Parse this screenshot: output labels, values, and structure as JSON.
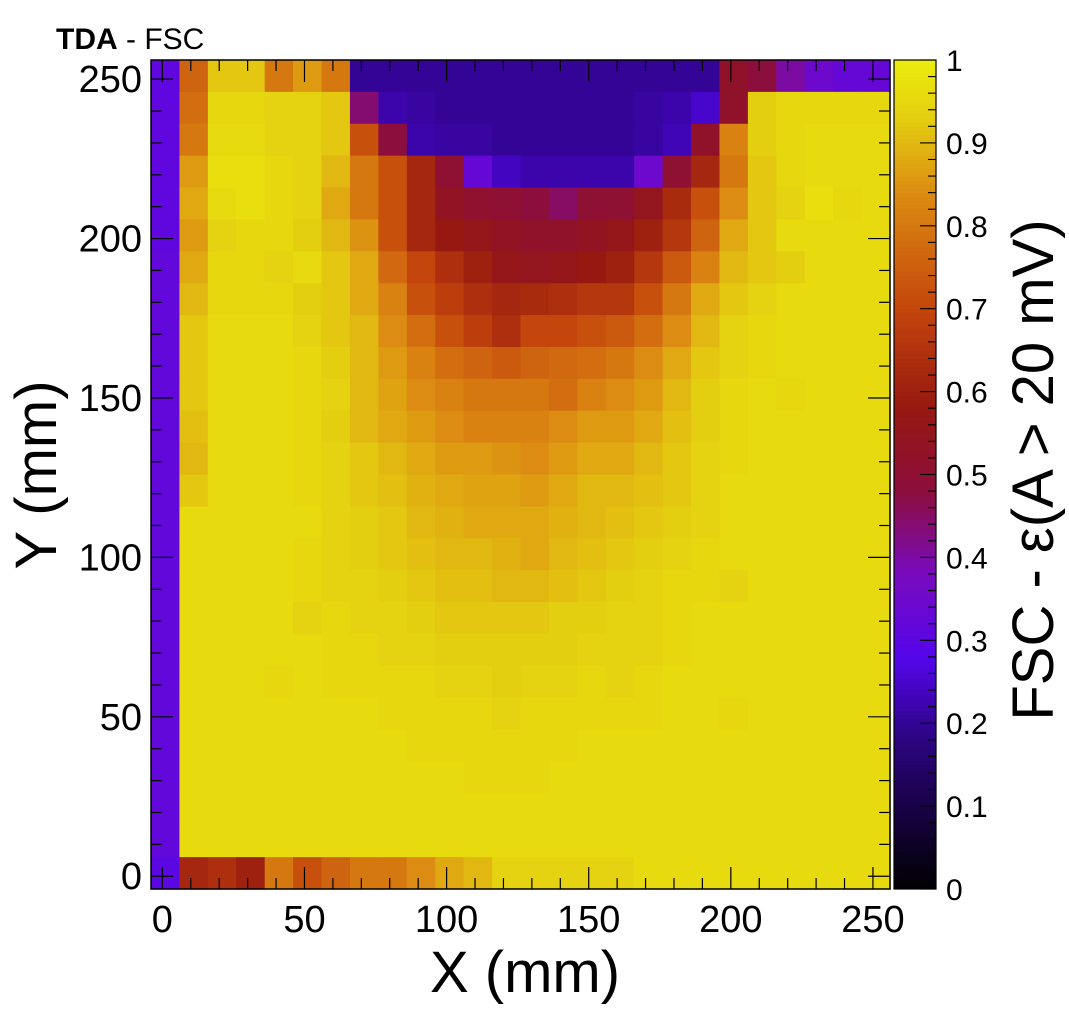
{
  "title": {
    "bold": "TDA",
    "rest": " - FSC"
  },
  "chart_data": {
    "type": "heatmap",
    "xlabel": "X (mm)",
    "ylabel": "Y (mm)",
    "zlabel": "FSC - ε(A > 20 mV)",
    "xlim": [
      -4,
      256
    ],
    "ylim": [
      -4,
      256
    ],
    "zlim": [
      0,
      1
    ],
    "x_ticks": [
      0,
      50,
      100,
      150,
      200,
      250
    ],
    "y_ticks": [
      0,
      50,
      100,
      150,
      200,
      250
    ],
    "z_ticks": [
      0,
      0.1,
      0.2,
      0.3,
      0.4,
      0.5,
      0.6,
      0.7,
      0.8,
      0.9,
      1
    ],
    "x_tick_labels": [
      "0",
      "50",
      "100",
      "150",
      "200",
      "250"
    ],
    "y_tick_labels": [
      "0",
      "50",
      "100",
      "150",
      "200",
      "250"
    ],
    "z_tick_labels": [
      "0",
      "0.1",
      "0.2",
      "0.3",
      "0.4",
      "0.5",
      "0.6",
      "0.7",
      "0.8",
      "0.9",
      "1"
    ],
    "bin_width": 10,
    "first_bin_x": -4,
    "first_bin_y": -4,
    "rows_top_to_bottom": [
      [
        0.31,
        0.76,
        0.92,
        0.92,
        0.8,
        0.86,
        0.8,
        0.2,
        0.2,
        0.2,
        0.2,
        0.2,
        0.2,
        0.2,
        0.2,
        0.2,
        0.2,
        0.2,
        0.2,
        0.2,
        0.52,
        0.48,
        0.4,
        0.35,
        0.33,
        0.33
      ],
      [
        0.31,
        0.78,
        0.95,
        0.95,
        0.94,
        0.94,
        0.92,
        0.44,
        0.22,
        0.21,
        0.2,
        0.2,
        0.2,
        0.2,
        0.2,
        0.2,
        0.2,
        0.21,
        0.22,
        0.25,
        0.52,
        0.93,
        0.95,
        0.95,
        0.95,
        0.95
      ],
      [
        0.31,
        0.8,
        0.96,
        0.96,
        0.94,
        0.94,
        0.92,
        0.72,
        0.48,
        0.22,
        0.21,
        0.21,
        0.2,
        0.2,
        0.2,
        0.2,
        0.2,
        0.21,
        0.23,
        0.52,
        0.82,
        0.93,
        0.95,
        0.96,
        0.96,
        0.96
      ],
      [
        0.31,
        0.86,
        0.97,
        0.97,
        0.95,
        0.94,
        0.9,
        0.8,
        0.72,
        0.62,
        0.5,
        0.33,
        0.24,
        0.22,
        0.22,
        0.22,
        0.22,
        0.35,
        0.5,
        0.62,
        0.8,
        0.92,
        0.95,
        0.96,
        0.96,
        0.96
      ],
      [
        0.31,
        0.88,
        0.96,
        0.97,
        0.95,
        0.94,
        0.88,
        0.8,
        0.72,
        0.62,
        0.54,
        0.51,
        0.5,
        0.48,
        0.45,
        0.5,
        0.5,
        0.55,
        0.63,
        0.72,
        0.84,
        0.92,
        0.94,
        0.97,
        0.95,
        0.96
      ],
      [
        0.31,
        0.86,
        0.94,
        0.95,
        0.95,
        0.93,
        0.9,
        0.85,
        0.72,
        0.62,
        0.58,
        0.56,
        0.54,
        0.52,
        0.52,
        0.54,
        0.56,
        0.6,
        0.66,
        0.76,
        0.88,
        0.92,
        0.96,
        0.96,
        0.96,
        0.96
      ],
      [
        0.32,
        0.88,
        0.95,
        0.95,
        0.94,
        0.96,
        0.92,
        0.88,
        0.77,
        0.7,
        0.64,
        0.6,
        0.56,
        0.55,
        0.56,
        0.58,
        0.6,
        0.66,
        0.74,
        0.82,
        0.9,
        0.92,
        0.93,
        0.96,
        0.96,
        0.96
      ],
      [
        0.32,
        0.9,
        0.95,
        0.95,
        0.95,
        0.93,
        0.92,
        0.88,
        0.82,
        0.72,
        0.68,
        0.64,
        0.62,
        0.63,
        0.64,
        0.66,
        0.66,
        0.72,
        0.8,
        0.88,
        0.92,
        0.94,
        0.96,
        0.96,
        0.96,
        0.96
      ],
      [
        0.32,
        0.92,
        0.96,
        0.96,
        0.96,
        0.94,
        0.92,
        0.9,
        0.84,
        0.78,
        0.72,
        0.68,
        0.64,
        0.7,
        0.7,
        0.72,
        0.74,
        0.78,
        0.84,
        0.9,
        0.94,
        0.95,
        0.96,
        0.96,
        0.96,
        0.96
      ],
      [
        0.32,
        0.92,
        0.96,
        0.96,
        0.96,
        0.95,
        0.93,
        0.9,
        0.86,
        0.82,
        0.78,
        0.76,
        0.74,
        0.76,
        0.77,
        0.78,
        0.8,
        0.84,
        0.88,
        0.92,
        0.94,
        0.95,
        0.96,
        0.96,
        0.96,
        0.96
      ],
      [
        0.32,
        0.92,
        0.96,
        0.96,
        0.96,
        0.95,
        0.94,
        0.9,
        0.87,
        0.84,
        0.82,
        0.8,
        0.8,
        0.8,
        0.78,
        0.82,
        0.84,
        0.86,
        0.9,
        0.93,
        0.95,
        0.96,
        0.95,
        0.96,
        0.96,
        0.96
      ],
      [
        0.32,
        0.91,
        0.96,
        0.96,
        0.96,
        0.95,
        0.93,
        0.9,
        0.88,
        0.86,
        0.84,
        0.82,
        0.82,
        0.82,
        0.84,
        0.86,
        0.86,
        0.88,
        0.91,
        0.93,
        0.95,
        0.96,
        0.96,
        0.96,
        0.96,
        0.96
      ],
      [
        0.32,
        0.9,
        0.96,
        0.96,
        0.96,
        0.95,
        0.94,
        0.92,
        0.9,
        0.88,
        0.86,
        0.86,
        0.85,
        0.84,
        0.86,
        0.88,
        0.88,
        0.9,
        0.92,
        0.94,
        0.95,
        0.96,
        0.96,
        0.96,
        0.96,
        0.96
      ],
      [
        0.32,
        0.92,
        0.96,
        0.96,
        0.96,
        0.95,
        0.94,
        0.92,
        0.91,
        0.89,
        0.88,
        0.87,
        0.87,
        0.86,
        0.88,
        0.9,
        0.9,
        0.91,
        0.92,
        0.94,
        0.96,
        0.96,
        0.96,
        0.96,
        0.96,
        0.96
      ],
      [
        0.32,
        0.96,
        0.96,
        0.96,
        0.96,
        0.96,
        0.94,
        0.93,
        0.92,
        0.9,
        0.89,
        0.88,
        0.88,
        0.88,
        0.89,
        0.9,
        0.91,
        0.92,
        0.93,
        0.94,
        0.96,
        0.96,
        0.96,
        0.96,
        0.96,
        0.96
      ],
      [
        0.32,
        0.96,
        0.96,
        0.96,
        0.96,
        0.95,
        0.94,
        0.93,
        0.92,
        0.91,
        0.9,
        0.9,
        0.89,
        0.88,
        0.9,
        0.91,
        0.92,
        0.93,
        0.94,
        0.95,
        0.96,
        0.96,
        0.96,
        0.96,
        0.96,
        0.96
      ],
      [
        0.32,
        0.96,
        0.96,
        0.96,
        0.96,
        0.95,
        0.94,
        0.94,
        0.93,
        0.92,
        0.91,
        0.91,
        0.9,
        0.9,
        0.91,
        0.92,
        0.93,
        0.94,
        0.95,
        0.95,
        0.94,
        0.96,
        0.96,
        0.96,
        0.96,
        0.96
      ],
      [
        0.32,
        0.96,
        0.96,
        0.96,
        0.96,
        0.94,
        0.95,
        0.94,
        0.94,
        0.93,
        0.92,
        0.92,
        0.92,
        0.92,
        0.93,
        0.93,
        0.94,
        0.94,
        0.95,
        0.96,
        0.96,
        0.96,
        0.96,
        0.96,
        0.96,
        0.96
      ],
      [
        0.32,
        0.96,
        0.96,
        0.96,
        0.96,
        0.96,
        0.95,
        0.95,
        0.94,
        0.94,
        0.93,
        0.93,
        0.93,
        0.93,
        0.93,
        0.94,
        0.94,
        0.94,
        0.95,
        0.96,
        0.96,
        0.96,
        0.96,
        0.96,
        0.96,
        0.96
      ],
      [
        0.32,
        0.96,
        0.96,
        0.96,
        0.95,
        0.96,
        0.95,
        0.95,
        0.95,
        0.95,
        0.94,
        0.94,
        0.93,
        0.94,
        0.94,
        0.95,
        0.94,
        0.95,
        0.96,
        0.96,
        0.96,
        0.96,
        0.96,
        0.96,
        0.96,
        0.96
      ],
      [
        0.32,
        0.96,
        0.96,
        0.96,
        0.96,
        0.96,
        0.96,
        0.96,
        0.95,
        0.95,
        0.95,
        0.95,
        0.94,
        0.95,
        0.95,
        0.95,
        0.95,
        0.95,
        0.96,
        0.96,
        0.95,
        0.96,
        0.96,
        0.96,
        0.96,
        0.96
      ],
      [
        0.32,
        0.96,
        0.96,
        0.96,
        0.96,
        0.96,
        0.96,
        0.96,
        0.96,
        0.95,
        0.95,
        0.95,
        0.95,
        0.95,
        0.95,
        0.96,
        0.96,
        0.96,
        0.96,
        0.96,
        0.96,
        0.96,
        0.96,
        0.96,
        0.96,
        0.96
      ],
      [
        0.32,
        0.96,
        0.96,
        0.96,
        0.96,
        0.96,
        0.96,
        0.96,
        0.96,
        0.96,
        0.96,
        0.95,
        0.95,
        0.95,
        0.96,
        0.96,
        0.96,
        0.96,
        0.96,
        0.96,
        0.96,
        0.96,
        0.96,
        0.96,
        0.96,
        0.96
      ],
      [
        0.32,
        0.96,
        0.96,
        0.96,
        0.96,
        0.96,
        0.96,
        0.96,
        0.96,
        0.96,
        0.96,
        0.96,
        0.96,
        0.96,
        0.96,
        0.96,
        0.96,
        0.96,
        0.96,
        0.96,
        0.96,
        0.96,
        0.96,
        0.96,
        0.96,
        0.96
      ],
      [
        0.32,
        0.96,
        0.96,
        0.96,
        0.96,
        0.96,
        0.96,
        0.96,
        0.96,
        0.96,
        0.96,
        0.96,
        0.96,
        0.96,
        0.96,
        0.96,
        0.96,
        0.96,
        0.96,
        0.96,
        0.96,
        0.96,
        0.96,
        0.96,
        0.96,
        0.96
      ],
      [
        0.3,
        0.62,
        0.64,
        0.6,
        0.8,
        0.72,
        0.76,
        0.8,
        0.8,
        0.84,
        0.88,
        0.9,
        0.94,
        0.94,
        0.94,
        0.94,
        0.94,
        0.96,
        0.96,
        0.96,
        0.96,
        0.96,
        0.96,
        0.96,
        0.96,
        0.96
      ]
    ]
  }
}
